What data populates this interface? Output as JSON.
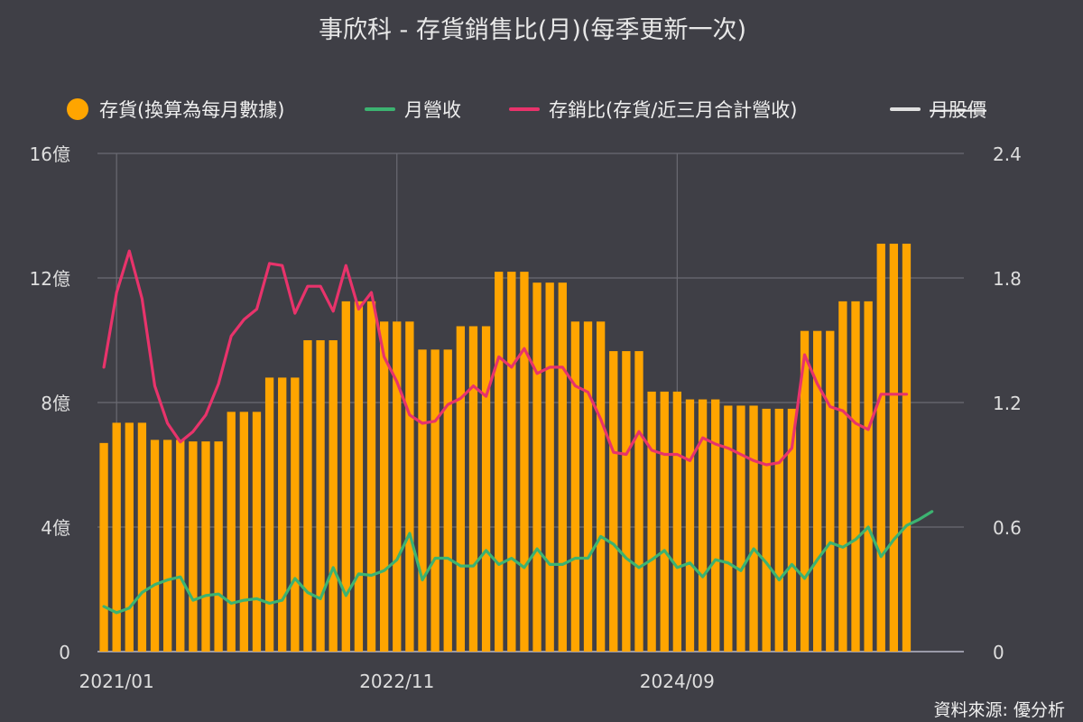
{
  "chart_data": {
    "type": "bar+line",
    "title": "事欣科 - 存貨銷售比(月)(每季更新一次)",
    "source": "資料來源: 優分析",
    "legend": [
      {
        "key": "inventory",
        "label": "存貨(換算為每月數據)",
        "color": "#ffa500",
        "marker": "dot",
        "strike": false
      },
      {
        "key": "revenue",
        "label": "月營收",
        "color": "#3cb371",
        "marker": "line",
        "strike": false
      },
      {
        "key": "ratio",
        "label": "存銷比(存貨/近三月合計營收)",
        "color": "#e8336b",
        "marker": "line",
        "strike": false
      },
      {
        "key": "price",
        "label": "月股價",
        "color": "#e0e0e0",
        "marker": "line",
        "strike": true
      }
    ],
    "left_axis": {
      "ticks": [
        "0",
        "4億",
        "8億",
        "12億",
        "16億"
      ],
      "tick_values": [
        0,
        4,
        8,
        12,
        16
      ],
      "min": 0,
      "max": 16,
      "unit": "億"
    },
    "right_axis": {
      "ticks": [
        "0",
        "0.6",
        "1.2",
        "1.8",
        "2.4"
      ],
      "tick_values": [
        0,
        0.6,
        1.2,
        1.8,
        2.4
      ],
      "min": 0,
      "max": 2.4
    },
    "x_axis": {
      "start": "2020-12",
      "labels": [
        "2021/01",
        "2022/11",
        "2024/09"
      ],
      "label_months": [
        "2021-01",
        "2022-11",
        "2024-09"
      ]
    },
    "months": [
      "2020-12",
      "2021-01",
      "2021-02",
      "2021-03",
      "2021-04",
      "2021-05",
      "2021-06",
      "2021-07",
      "2021-08",
      "2021-09",
      "2021-10",
      "2021-11",
      "2021-12",
      "2022-01",
      "2022-02",
      "2022-03",
      "2022-04",
      "2022-05",
      "2022-06",
      "2022-07",
      "2022-08",
      "2022-09",
      "2022-10",
      "2022-11",
      "2022-12",
      "2023-01",
      "2023-02",
      "2023-03",
      "2023-04",
      "2023-05",
      "2023-06",
      "2023-07",
      "2023-08",
      "2023-09",
      "2023-10",
      "2023-11",
      "2023-12",
      "2024-01",
      "2024-02",
      "2024-03",
      "2024-04",
      "2024-05",
      "2024-06",
      "2024-07",
      "2024-08",
      "2024-09",
      "2024-10",
      "2024-11",
      "2024-12",
      "2025-01",
      "2025-02",
      "2025-03",
      "2025-04",
      "2025-05",
      "2025-06",
      "2025-07",
      "2025-08",
      "2025-09",
      "2025-10",
      "2025-11",
      "2025-12",
      "2026-01",
      "2026-02",
      "2026-03",
      "2026-04",
      "2026-05",
      "2026-06",
      "2026-07"
    ],
    "series": [
      {
        "key": "inventory",
        "type": "bar",
        "axis": "left",
        "values": [
          6.7,
          7.35,
          7.35,
          7.35,
          6.8,
          6.8,
          6.8,
          6.75,
          6.75,
          6.75,
          7.7,
          7.7,
          7.7,
          8.8,
          8.8,
          8.8,
          10.0,
          10.0,
          10.0,
          11.25,
          11.25,
          11.25,
          10.6,
          10.6,
          10.6,
          9.7,
          9.7,
          9.7,
          10.45,
          10.45,
          10.45,
          12.2,
          12.2,
          12.2,
          11.85,
          11.85,
          11.85,
          10.6,
          10.6,
          10.6,
          9.65,
          9.65,
          9.65,
          8.35,
          8.35,
          8.35,
          8.1,
          8.1,
          8.1,
          7.9,
          7.9,
          7.9,
          7.8,
          7.8,
          7.8,
          10.3,
          10.3,
          10.3,
          11.25,
          11.25,
          11.25,
          13.1,
          13.1,
          13.1,
          null,
          null,
          null,
          null
        ]
      },
      {
        "key": "revenue",
        "type": "line",
        "axis": "left",
        "values": [
          1.45,
          1.25,
          1.4,
          1.9,
          2.15,
          2.3,
          2.4,
          1.65,
          1.8,
          1.85,
          1.55,
          1.65,
          1.7,
          1.55,
          1.65,
          2.35,
          1.9,
          1.7,
          2.7,
          1.8,
          2.5,
          2.45,
          2.6,
          2.95,
          3.8,
          2.3,
          3.0,
          3.0,
          2.75,
          2.75,
          3.25,
          2.8,
          3.0,
          2.7,
          3.3,
          2.8,
          2.8,
          3.0,
          3.0,
          3.7,
          3.45,
          3.0,
          2.7,
          2.95,
          3.25,
          2.7,
          2.85,
          2.4,
          2.95,
          2.85,
          2.6,
          3.3,
          2.85,
          2.3,
          2.8,
          2.35,
          2.95,
          3.5,
          3.35,
          3.6,
          4.0,
          3.05,
          3.6,
          4.05,
          4.25,
          4.5,
          null,
          null
        ]
      },
      {
        "key": "ratio",
        "type": "line",
        "axis": "right",
        "values": [
          1.37,
          1.73,
          1.93,
          1.7,
          1.28,
          1.1,
          1.01,
          1.06,
          1.14,
          1.29,
          1.52,
          1.6,
          1.65,
          1.87,
          1.86,
          1.63,
          1.76,
          1.76,
          1.64,
          1.86,
          1.65,
          1.73,
          1.42,
          1.3,
          1.14,
          1.1,
          1.11,
          1.19,
          1.22,
          1.28,
          1.23,
          1.42,
          1.37,
          1.46,
          1.34,
          1.37,
          1.37,
          1.28,
          1.25,
          1.12,
          0.96,
          0.95,
          1.06,
          0.97,
          0.95,
          0.95,
          0.92,
          1.03,
          1.0,
          0.98,
          0.95,
          0.92,
          0.9,
          0.91,
          0.98,
          1.43,
          1.29,
          1.18,
          1.16,
          1.1,
          1.07,
          1.24,
          1.24,
          1.24,
          null,
          null,
          null,
          null
        ]
      }
    ]
  }
}
